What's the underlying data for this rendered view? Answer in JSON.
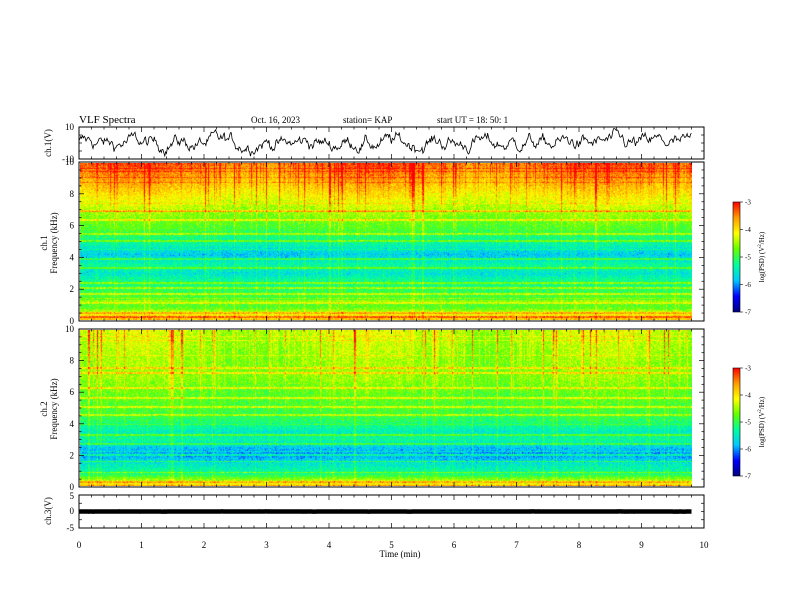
{
  "header": {
    "title": "VLF Spectra",
    "date": "Oct. 16, 2023",
    "station": "station= KAP",
    "start": "start  UT  =   18: 50: 1"
  },
  "chart_data": [
    {
      "type": "line",
      "name": "ch1-waveform",
      "ylabel": "ch.1(V)",
      "ylim": [
        -10,
        10
      ],
      "yticks": [
        "10",
        "-10"
      ],
      "xlim": [
        0,
        10
      ],
      "trace": {
        "mean": 0,
        "amplitude": 6.5,
        "x_end": 9.8
      }
    },
    {
      "type": "heatmap",
      "name": "ch1-spectrogram",
      "ylabel_line1": "ch.1",
      "ylabel_line2": "Frequency  (kHz)",
      "ylim": [
        0,
        10
      ],
      "yticks": [
        "0",
        "2",
        "4",
        "6",
        "8",
        "10"
      ],
      "xlim": [
        0,
        10
      ],
      "x_end": 9.8,
      "log_psd_profile": [
        {
          "f": 0.0,
          "v": -3.8
        },
        {
          "f": 0.3,
          "v": -4.0
        },
        {
          "f": 0.8,
          "v": -4.8
        },
        {
          "f": 1.5,
          "v": -4.9
        },
        {
          "f": 2.0,
          "v": -5.1
        },
        {
          "f": 2.6,
          "v": -5.3
        },
        {
          "f": 3.0,
          "v": -5.6
        },
        {
          "f": 3.5,
          "v": -5.3
        },
        {
          "f": 4.2,
          "v": -5.8
        },
        {
          "f": 4.8,
          "v": -5.4
        },
        {
          "f": 5.3,
          "v": -5.2
        },
        {
          "f": 5.8,
          "v": -4.9
        },
        {
          "f": 6.5,
          "v": -4.7
        },
        {
          "f": 7.5,
          "v": -4.3
        },
        {
          "f": 8.5,
          "v": -3.9
        },
        {
          "f": 10.0,
          "v": -3.4
        }
      ],
      "lines_khz": [
        0.2,
        0.5,
        1.1,
        1.7,
        2.05,
        2.4,
        3.35,
        3.9,
        5.05,
        5.5,
        6.4,
        7.0
      ],
      "colorbar": {
        "label": "log(PSD) (V",
        "label_sup": "2",
        "label_end": "/Hz)",
        "range": [
          -7,
          -3
        ],
        "ticks": [
          "-3",
          "-4",
          "-5",
          "-6",
          "-7"
        ]
      }
    },
    {
      "type": "heatmap",
      "name": "ch2-spectrogram",
      "ylabel_line1": "ch.2",
      "ylabel_line2": "Frequency  (kHz)",
      "ylim": [
        0,
        10
      ],
      "yticks": [
        "0",
        "2",
        "4",
        "6",
        "8",
        "10"
      ],
      "xlim": [
        0,
        10
      ],
      "x_end": 9.8,
      "log_psd_profile": [
        {
          "f": 0.0,
          "v": -3.9
        },
        {
          "f": 0.3,
          "v": -4.3
        },
        {
          "f": 0.8,
          "v": -5.2
        },
        {
          "f": 1.5,
          "v": -5.6
        },
        {
          "f": 2.0,
          "v": -6.0
        },
        {
          "f": 2.5,
          "v": -5.8
        },
        {
          "f": 3.0,
          "v": -5.3
        },
        {
          "f": 3.5,
          "v": -5.5
        },
        {
          "f": 4.2,
          "v": -5.1
        },
        {
          "f": 5.0,
          "v": -4.9
        },
        {
          "f": 6.0,
          "v": -4.8
        },
        {
          "f": 7.0,
          "v": -4.6
        },
        {
          "f": 8.0,
          "v": -4.6
        },
        {
          "f": 9.0,
          "v": -4.5
        },
        {
          "f": 10.0,
          "v": -4.4
        }
      ],
      "lines_khz": [
        0.3,
        0.9,
        1.6,
        2.0,
        2.7,
        3.3,
        4.6,
        5.1,
        5.7,
        6.3,
        7.3,
        7.6
      ],
      "colorbar": {
        "label": "log(PSD) (V",
        "label_sup": "2",
        "label_end": "/Hz)",
        "range": [
          -7,
          -3
        ],
        "ticks": [
          "-3",
          "-4",
          "-5",
          "-6",
          "-7"
        ]
      }
    },
    {
      "type": "line",
      "name": "ch3-waveform",
      "ylabel": "ch.3(V)",
      "ylim": [
        -5,
        5
      ],
      "yticks": [
        "5",
        "0",
        "-5"
      ],
      "xlim": [
        0,
        10
      ],
      "trace": {
        "mean": 0,
        "amplitude": 0.2,
        "x_end": 9.8
      }
    }
  ],
  "xaxis": {
    "label": "Time  (min)",
    "ticks": [
      "0",
      "1",
      "2",
      "3",
      "4",
      "5",
      "6",
      "7",
      "8",
      "9",
      "10"
    ]
  },
  "colorscale": [
    "#000080",
    "#0000ff",
    "#00c8ff",
    "#00ff9c",
    "#64ff00",
    "#ffff00",
    "#ff9c00",
    "#ff0000"
  ]
}
